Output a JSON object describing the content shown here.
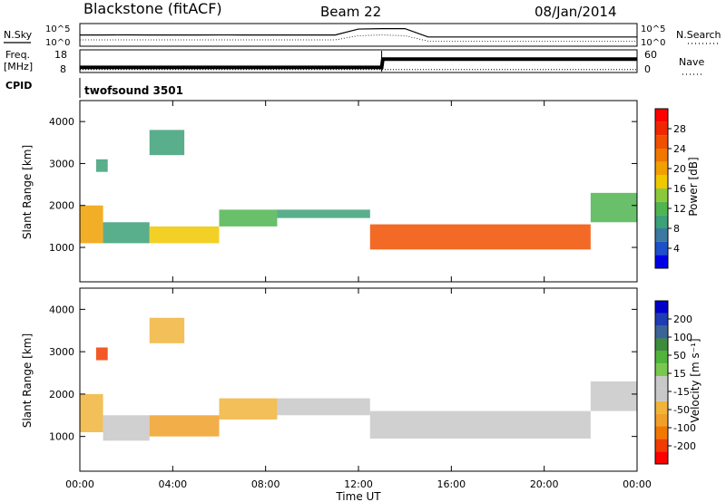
{
  "header": {
    "station": "Blackstone (fitACF)",
    "beam": "Beam 22",
    "date": "08/Jan/2014"
  },
  "top_panel": {
    "left_label": "N.Sky",
    "right_label": "N.Search",
    "left_ticks": [
      "10^5",
      "10^0"
    ],
    "right_ticks": [
      "10^5",
      "10^0"
    ]
  },
  "freq_panel": {
    "left_label": "Freq.",
    "left_unit": "[MHz]",
    "right_label": "Nave",
    "left_ticks": [
      "18",
      "8"
    ],
    "right_ticks": [
      "60",
      "0"
    ]
  },
  "cpid": {
    "label": "CPID",
    "value": "twofsound 3501"
  },
  "power_colorbar": {
    "label": "Power [dB]",
    "ticks": [
      "28",
      "24",
      "20",
      "16",
      "12",
      "8",
      "4"
    ],
    "colors": [
      "#0000e6",
      "#1e50c8",
      "#3c78a0",
      "#3ca078",
      "#50b450",
      "#8cc83c",
      "#f0c800",
      "#f0a000",
      "#f07800",
      "#f05000",
      "#f02800",
      "#ff0000"
    ]
  },
  "velocity_colorbar": {
    "label": "Velocity [m s⁻¹]",
    "ticks": [
      "200",
      "100",
      "50",
      "15",
      "-15",
      "-50",
      "-100",
      "-200"
    ],
    "colors": [
      "#ff0000",
      "#f03c00",
      "#f07800",
      "#f0a028",
      "#f0b43c",
      "#c8c8c8",
      "#c8c8c8",
      "#78c850",
      "#50b43c",
      "#3c8c3c",
      "#3c6496",
      "#1e3cb4",
      "#0000c8"
    ]
  },
  "chart_data": [
    {
      "type": "line",
      "title": "N.Sky / N.Search",
      "x": [
        0,
        1,
        2,
        3,
        4,
        5,
        6,
        7,
        8,
        9,
        10,
        11,
        12,
        13,
        14,
        15,
        16,
        17,
        18,
        19,
        20,
        21,
        22,
        23,
        24
      ],
      "series": [
        {
          "name": "N.Sky",
          "values": [
            300,
            300,
            320,
            300,
            300,
            300,
            310,
            300,
            300,
            300,
            300,
            300,
            8000,
            10000,
            10000,
            100,
            100,
            100,
            100,
            100,
            100,
            100,
            100,
            100,
            100
          ]
        },
        {
          "name": "N.Search",
          "values": [
            20,
            20,
            20,
            20,
            20,
            20,
            20,
            20,
            20,
            20,
            20,
            20,
            200,
            300,
            200,
            10,
            10,
            10,
            10,
            10,
            10,
            10,
            10,
            10,
            10
          ]
        }
      ],
      "ylim": [
        1,
        100000
      ],
      "yscale": "log"
    },
    {
      "type": "line",
      "title": "Freq. / Nave",
      "x": [
        0,
        4,
        8,
        12,
        13,
        13.05,
        16,
        20,
        24
      ],
      "series": [
        {
          "name": "Freq.",
          "values": [
            10,
            10,
            10,
            10,
            10,
            14,
            14,
            14,
            14
          ]
        },
        {
          "name": "Nave",
          "values": [
            9,
            9,
            9,
            9,
            9,
            9,
            9,
            9,
            9
          ]
        }
      ],
      "ylim": [
        8,
        18
      ],
      "y2lim": [
        0,
        60
      ]
    },
    {
      "type": "heatmap",
      "title": "",
      "xlabel": "",
      "ylabel": "Slant Range [km]",
      "xticks": [
        "00:00",
        "04:00",
        "08:00",
        "12:00",
        "16:00",
        "20:00",
        "00:00"
      ],
      "yticks": [
        1000,
        2000,
        3000,
        4000
      ],
      "xlim": [
        0,
        24
      ],
      "ylim": [
        180,
        4500
      ],
      "zlabel": "Power [dB]",
      "zlim": [
        0,
        32
      ],
      "bands": [
        {
          "t_start": 0.0,
          "t_end": 1.0,
          "range_low": 1100,
          "range_high": 2000,
          "value": 20
        },
        {
          "t_start": 1.0,
          "t_end": 3.0,
          "range_low": 1100,
          "range_high": 1600,
          "value": 10
        },
        {
          "t_start": 3.0,
          "t_end": 6.0,
          "range_low": 1100,
          "range_high": 1500,
          "value": 18
        },
        {
          "t_start": 6.0,
          "t_end": 8.5,
          "range_low": 1500,
          "range_high": 1900,
          "value": 12
        },
        {
          "t_start": 8.5,
          "t_end": 12.5,
          "range_low": 1700,
          "range_high": 1900,
          "value": 8
        },
        {
          "t_start": 12.5,
          "t_end": 22.0,
          "range_low": 950,
          "range_high": 1550,
          "value": 26
        },
        {
          "t_start": 22.0,
          "t_end": 24.0,
          "range_low": 1600,
          "range_high": 2300,
          "value": 12
        },
        {
          "t_start": 0.7,
          "t_end": 1.2,
          "range_low": 2800,
          "range_high": 3100,
          "value": 8
        },
        {
          "t_start": 3.0,
          "t_end": 4.5,
          "range_low": 3200,
          "range_high": 3800,
          "value": 10
        }
      ]
    },
    {
      "type": "heatmap",
      "title": "",
      "xlabel": "Time UT",
      "ylabel": "Slant Range [km]",
      "xticks": [
        "00:00",
        "04:00",
        "08:00",
        "12:00",
        "16:00",
        "20:00",
        "00:00"
      ],
      "yticks": [
        1000,
        2000,
        3000,
        4000
      ],
      "xlim": [
        0,
        24
      ],
      "ylim": [
        180,
        4500
      ],
      "zlabel": "Velocity [m s⁻¹]",
      "zlim": [
        -200,
        200
      ],
      "bands": [
        {
          "t_start": 0.0,
          "t_end": 1.0,
          "range_low": 1100,
          "range_high": 2000,
          "value": -60
        },
        {
          "t_start": 1.0,
          "t_end": 3.0,
          "range_low": 900,
          "range_high": 1500,
          "value": 0
        },
        {
          "t_start": 3.0,
          "t_end": 6.0,
          "range_low": 1000,
          "range_high": 1500,
          "value": -80
        },
        {
          "t_start": 6.0,
          "t_end": 8.5,
          "range_low": 1400,
          "range_high": 1900,
          "value": -60
        },
        {
          "t_start": 8.5,
          "t_end": 12.5,
          "range_low": 1500,
          "range_high": 1900,
          "value": -40
        },
        {
          "t_start": 12.5,
          "t_end": 22.0,
          "range_low": 950,
          "range_high": 1600,
          "value": 0
        },
        {
          "t_start": 22.0,
          "t_end": 24.0,
          "range_low": 1600,
          "range_high": 2300,
          "value": 0
        },
        {
          "t_start": 0.7,
          "t_end": 1.2,
          "range_low": 2800,
          "range_high": 3100,
          "value": -150
        },
        {
          "t_start": 3.0,
          "t_end": 4.5,
          "range_low": 3200,
          "range_high": 3800,
          "value": -60
        }
      ]
    }
  ],
  "frequency_step": {
    "before": 10,
    "after": 14,
    "time": 13.0
  }
}
